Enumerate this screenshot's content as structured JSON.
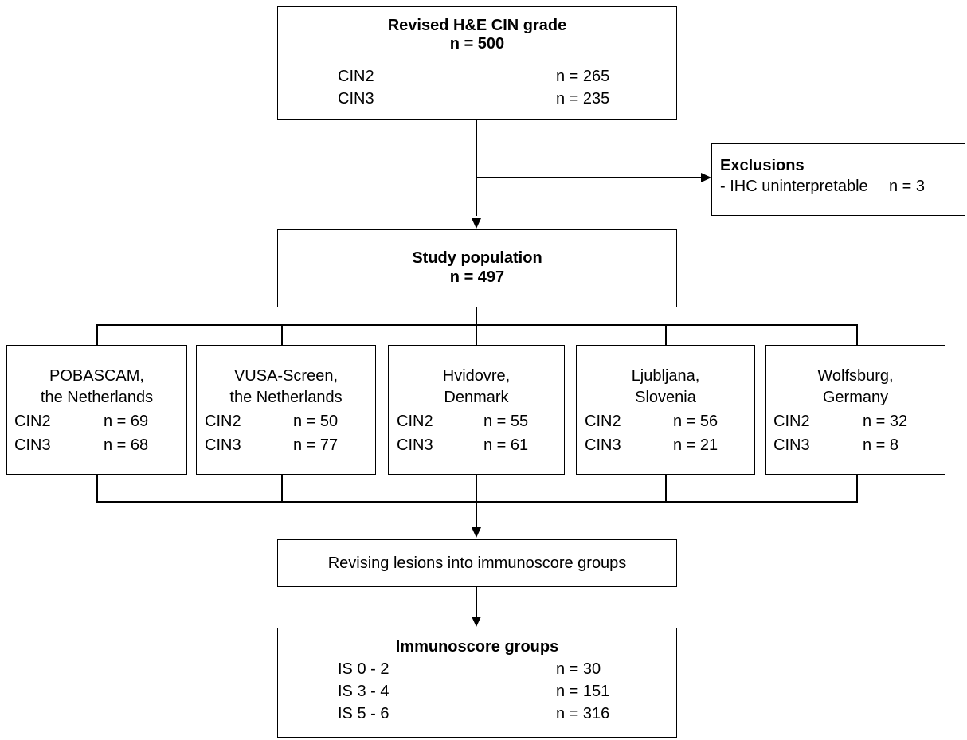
{
  "top_box": {
    "title": "Revised H&E CIN grade",
    "n": "n = 500",
    "rows": [
      {
        "label": "CIN2",
        "value": "n = 265"
      },
      {
        "label": "CIN3",
        "value": "n = 235"
      }
    ]
  },
  "exclusions": {
    "title": "Exclusions",
    "item": "- IHC uninterpretable",
    "value": "n = 3"
  },
  "study_box": {
    "title": "Study population",
    "n": "n = 497"
  },
  "cohorts": [
    {
      "name1": "POBASCAM,",
      "name2": "the Netherlands",
      "cin2": "CIN2",
      "cin2_n": "n = 69",
      "cin3": "CIN3",
      "cin3_n": "n = 68"
    },
    {
      "name1": "VUSA-Screen,",
      "name2": "the Netherlands",
      "cin2": "CIN2",
      "cin2_n": "n = 50",
      "cin3": "CIN3",
      "cin3_n": "n = 77"
    },
    {
      "name1": "Hvidovre,",
      "name2": "Denmark",
      "cin2": "CIN2",
      "cin2_n": "n = 55",
      "cin3": "CIN3",
      "cin3_n": "n = 61"
    },
    {
      "name1": "Ljubljana,",
      "name2": "Slovenia",
      "cin2": "CIN2",
      "cin2_n": "n = 56",
      "cin3": "CIN3",
      "cin3_n": "n = 21"
    },
    {
      "name1": "Wolfsburg,",
      "name2": "Germany",
      "cin2": "CIN2",
      "cin2_n": "n = 32",
      "cin3": "CIN3",
      "cin3_n": "n = 8"
    }
  ],
  "revise_box": {
    "text": "Revising lesions into immunoscore groups"
  },
  "immuno_box": {
    "title": "Immunoscore groups",
    "rows": [
      {
        "label": "IS 0 - 2",
        "value": "n = 30"
      },
      {
        "label": "IS 3 - 4",
        "value": "n = 151"
      },
      {
        "label": "IS 5 - 6",
        "value": "n = 316"
      }
    ]
  }
}
